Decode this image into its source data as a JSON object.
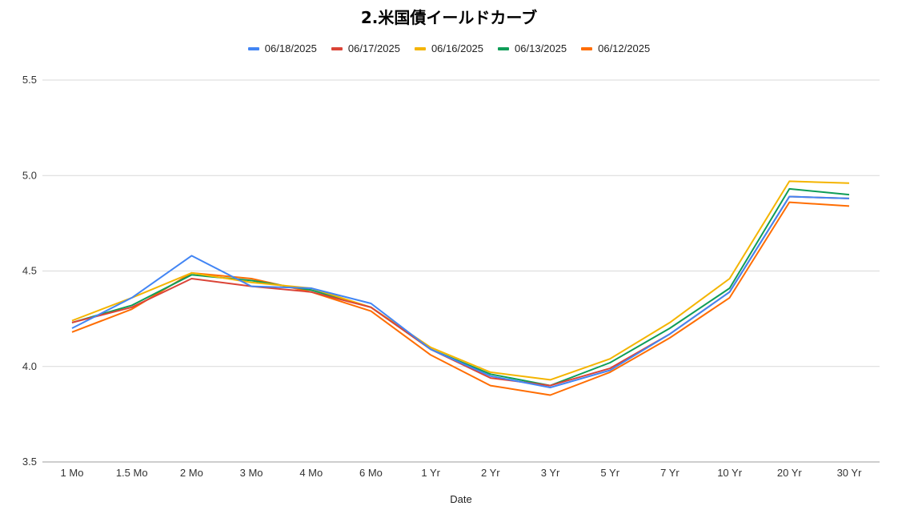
{
  "chart_data": {
    "type": "line",
    "title": "2.米国債イールドカーブ",
    "xlabel": "Date",
    "ylabel": "",
    "ylim": [
      3.5,
      5.5
    ],
    "yticks": [
      "3.5",
      "4.0",
      "4.5",
      "5.0",
      "5.5"
    ],
    "ytick_values": [
      3.5,
      4.0,
      4.5,
      5.0,
      5.5
    ],
    "grid": true,
    "legend_position": "top",
    "categories": [
      "1 Mo",
      "1.5 Mo",
      "2 Mo",
      "3 Mo",
      "4 Mo",
      "6 Mo",
      "1 Yr",
      "2 Yr",
      "3 Yr",
      "5 Yr",
      "7 Yr",
      "10 Yr",
      "20 Yr",
      "30 Yr"
    ],
    "series": [
      {
        "name": "06/18/2025",
        "color": "#4285f4",
        "values": [
          4.2,
          4.36,
          4.58,
          4.42,
          4.41,
          4.33,
          4.09,
          3.95,
          3.89,
          3.98,
          4.17,
          4.39,
          4.89,
          4.88
        ]
      },
      {
        "name": "06/17/2025",
        "color": "#db4437",
        "values": [
          4.23,
          4.31,
          4.46,
          4.42,
          4.39,
          4.31,
          4.09,
          3.94,
          3.9,
          3.99,
          4.17,
          4.39,
          4.89,
          4.88
        ]
      },
      {
        "name": "06/16/2025",
        "color": "#f4b400",
        "values": [
          4.24,
          4.36,
          4.49,
          4.44,
          4.41,
          4.31,
          4.1,
          3.97,
          3.93,
          4.04,
          4.23,
          4.46,
          4.97,
          4.96
        ]
      },
      {
        "name": "06/13/2025",
        "color": "#0f9d58",
        "values": [
          4.23,
          4.32,
          4.48,
          4.45,
          4.4,
          4.31,
          4.09,
          3.96,
          3.9,
          4.02,
          4.2,
          4.41,
          4.93,
          4.9
        ]
      },
      {
        "name": "06/12/2025",
        "color": "#ff6d01",
        "values": [
          4.18,
          4.3,
          4.49,
          4.46,
          4.39,
          4.29,
          4.06,
          3.9,
          3.85,
          3.97,
          4.15,
          4.36,
          4.86,
          4.84
        ]
      }
    ]
  }
}
